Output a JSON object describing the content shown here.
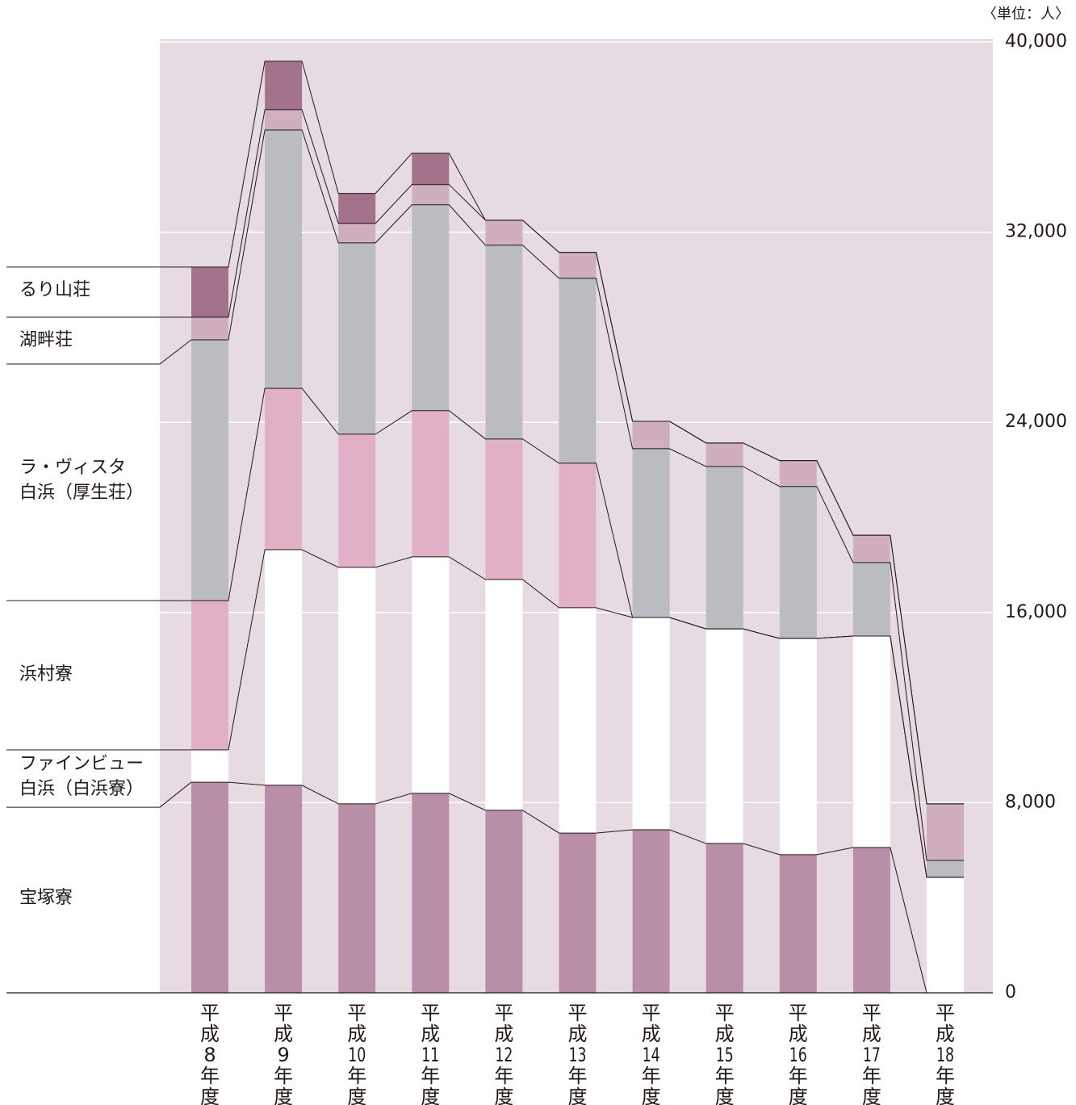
{
  "chart_data": {
    "type": "stacked_bar",
    "unit_label": "〈単位：人〉",
    "categories": [
      "平成8年度",
      "平成9年度",
      "平成10年度",
      "平成11年度",
      "平成12年度",
      "平成13年度",
      "平成14年度",
      "平成15年度",
      "平成16年度",
      "平成17年度",
      "平成18年度"
    ],
    "series": [
      {
        "name": "宝塚寮",
        "color": "#b98fa8",
        "values": [
          8860,
          8730,
          7950,
          8390,
          7680,
          6720,
          6860,
          6280,
          5810,
          6110,
          0
        ]
      },
      {
        "name": "ファインビュー\n白浜（白浜寮）",
        "color": "#ffffff",
        "values": [
          1360,
          9910,
          9950,
          9950,
          9710,
          9480,
          8930,
          9030,
          9100,
          8900,
          4860
        ]
      },
      {
        "name": "浜村寮",
        "color": "#e2b0c6",
        "values": [
          6280,
          6790,
          5600,
          6150,
          5910,
          6080,
          0,
          0,
          0,
          0,
          0
        ]
      },
      {
        "name": "ラ・ヴィスタ\n白浜（厚生荘）",
        "color": "#bbbcc1",
        "values": [
          10970,
          10870,
          8050,
          8660,
          8150,
          7780,
          7100,
          6830,
          6390,
          3090,
          710
        ]
      },
      {
        "name": "湖畔荘",
        "color": "#cfaebf",
        "values": [
          950,
          850,
          820,
          850,
          1050,
          1090,
          1150,
          990,
          1090,
          1150,
          2380
        ]
      },
      {
        "name": "るり山荘",
        "color": "#a5728b",
        "values": [
          2110,
          2040,
          1260,
          1320,
          0,
          0,
          0,
          0,
          0,
          0,
          0
        ]
      }
    ],
    "ylim": [
      0,
      40000
    ],
    "yticks": [
      0,
      {
        "value": 8000,
        "label": "8,000"
      },
      {
        "value": 16000,
        "label": "16,000"
      },
      {
        "value": 24000,
        "label": "24,000"
      },
      {
        "value": 32000,
        "label": "32,000"
      },
      {
        "value": 40000,
        "label": "40,000"
      }
    ],
    "grid": true
  }
}
